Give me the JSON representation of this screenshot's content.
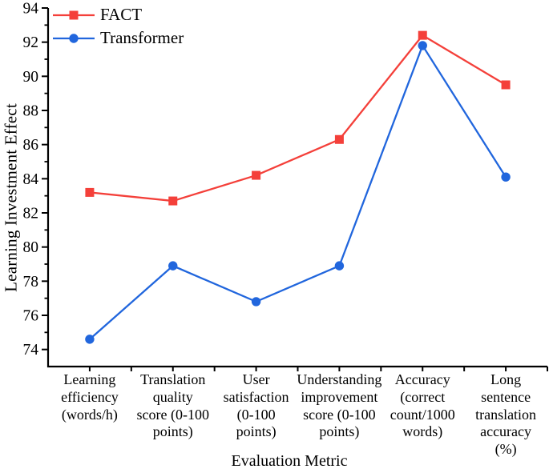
{
  "chart_data": {
    "type": "line",
    "title": "",
    "xlabel": "Evaluation Metric",
    "ylabel": "Learning Investment Effect",
    "ylim": [
      73,
      94
    ],
    "yticks": [
      74,
      76,
      78,
      80,
      82,
      84,
      86,
      88,
      90,
      92,
      94
    ],
    "y_minor_step": 1,
    "grid": false,
    "legend_position": "top-left",
    "axis_color": "#000000",
    "categories": [
      "Learning\nefficiency\n(words/h)",
      "Translation\nquality\nscore (0-100\npoints)",
      "User\nsatisfaction\n(0-100\npoints)",
      "Understanding\nimprovement\nscore (0-100\npoints)",
      "Accuracy\n(correct\ncount/1000\nwords)",
      "Long\nsentence\ntranslation\naccuracy\n(%)"
    ],
    "series": [
      {
        "name": "FACT",
        "color": "#f4403a",
        "marker": "square",
        "values": [
          83.2,
          82.7,
          84.2,
          86.3,
          92.4,
          89.5
        ]
      },
      {
        "name": "Transformer",
        "color": "#2166dd",
        "marker": "circle",
        "values": [
          74.6,
          78.9,
          76.8,
          78.9,
          91.8,
          84.1
        ]
      }
    ]
  }
}
